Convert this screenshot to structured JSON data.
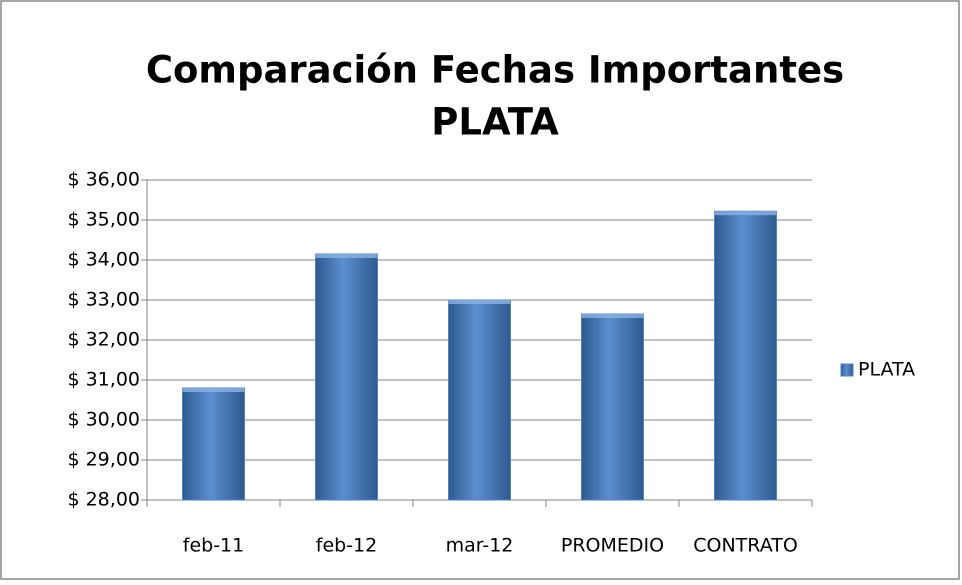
{
  "chart_data": {
    "type": "bar",
    "title": [
      "Comparación Fechas Importantes",
      "PLATA"
    ],
    "categories": [
      "feb-11",
      "feb-12",
      "mar-12",
      "PROMEDIO",
      "CONTRATO"
    ],
    "series": [
      {
        "name": "PLATA",
        "color": "#4f81bd",
        "values": [
          30.8,
          34.15,
          33.0,
          32.65,
          35.22
        ]
      }
    ],
    "ylim": [
      28,
      36
    ],
    "yticks": [
      {
        "value": 28,
        "label": "$ 28,00"
      },
      {
        "value": 29,
        "label": "$ 29,00"
      },
      {
        "value": 30,
        "label": "$ 30,00"
      },
      {
        "value": 31,
        "label": "$ 31,00"
      },
      {
        "value": 32,
        "label": "$ 32,00"
      },
      {
        "value": 33,
        "label": "$ 33,00"
      },
      {
        "value": 34,
        "label": "$ 34,00"
      },
      {
        "value": 35,
        "label": "$ 35,00"
      },
      {
        "value": 36,
        "label": "$ 36,00"
      }
    ],
    "grid": true,
    "legend": "right"
  }
}
